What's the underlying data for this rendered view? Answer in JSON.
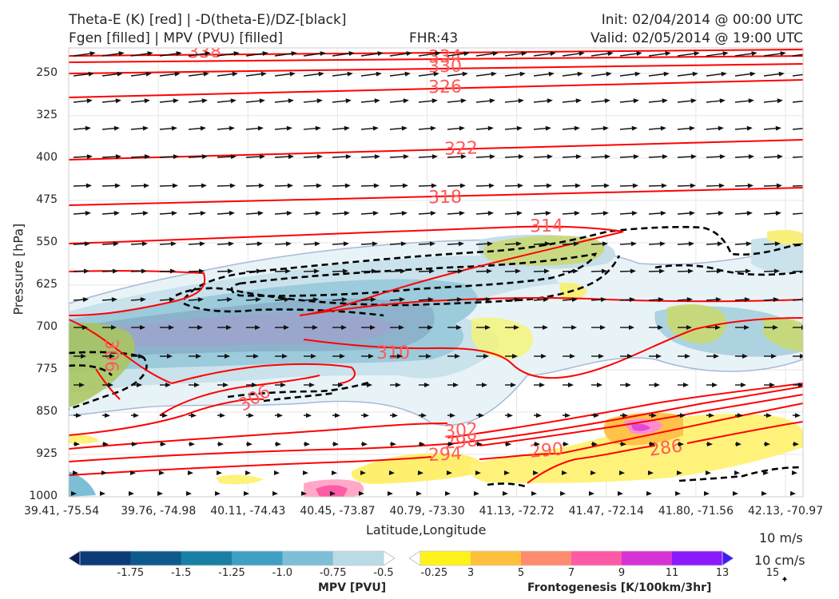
{
  "header": {
    "title_line1": "Theta-E (K) [red] | -D(theta-E)/DZ-[black]",
    "title_line2": "Fgen [filled] | MPV (PVU) [filled]",
    "fhr": "FHR:43",
    "init": "Init: 02/04/2014 @ 00:00 UTC",
    "valid": "Valid: 02/05/2014 @ 19:00 UTC"
  },
  "chart_data": {
    "type": "cross-section",
    "ylabel": "Pressure [hPa]",
    "xlabel": "Latitude,Longitude",
    "y_ticks": [
      "250",
      "325",
      "400",
      "475",
      "550",
      "625",
      "700",
      "775",
      "850",
      "925",
      "1000"
    ],
    "ylim": [
      1000,
      200
    ],
    "x_ticks": [
      "39.41, -75.54",
      "39.76, -74.98",
      "40.11, -74.43",
      "40.45, -73.87",
      "40.79, -73.30",
      "41.13, -72.72",
      "41.47, -72.14",
      "41.80, -71.56",
      "42.13, -70.97"
    ],
    "theta_e_contour_labels": [
      "338",
      "334",
      "330",
      "326",
      "322",
      "318",
      "314",
      "310",
      "306",
      "306",
      "302",
      "298",
      "294",
      "290",
      "286"
    ],
    "theta_e_color": "#ff0000",
    "theta_e_label_color": "#ff5a5a",
    "grid": true
  },
  "wind_key": {
    "horizontal": "10 m/s",
    "vertical": "10 cm/s"
  },
  "colorbars": {
    "mpv": {
      "title": "MPV [PVU]",
      "ticks": [
        "-1.75",
        "-1.5",
        "-1.25",
        "-1.0",
        "-0.75",
        "-0.5",
        "-0.25"
      ],
      "colors": [
        "#081d58",
        "#0c3c78",
        "#0e5a8c",
        "#1a7fa5",
        "#3fa0c4",
        "#7cbfd6",
        "#b9dbe6",
        "#ffffff"
      ]
    },
    "fgen": {
      "title": "Frontogenesis [K/100km/3hr]",
      "ticks": [
        "3",
        "5",
        "7",
        "9",
        "11",
        "13",
        "15"
      ],
      "colors": [
        "#ffffff",
        "#fff21a",
        "#ffc03d",
        "#ff8c6e",
        "#ff5aa6",
        "#d633d6",
        "#8c1aff",
        "#3c1aff"
      ]
    }
  }
}
